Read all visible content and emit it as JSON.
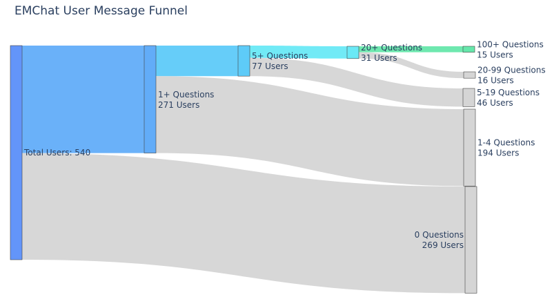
{
  "chart_data": {
    "type": "sankey",
    "title": "EMChat User Message Funnel",
    "nodes": [
      {
        "id": "total",
        "label": "Total Users: 540",
        "value": 540,
        "color": "#5b8ff9"
      },
      {
        "id": "q1",
        "label": "1+ Questions",
        "users_label": "271 Users",
        "value": 271,
        "color": "#5aa8f8"
      },
      {
        "id": "q5",
        "label": "5+ Questions",
        "users_label": "77 Users",
        "value": 77,
        "color": "#55c8f8"
      },
      {
        "id": "q20",
        "label": "20+ Questions",
        "users_label": "31 Users",
        "value": 31,
        "color": "#62e8f5"
      },
      {
        "id": "q100",
        "label": "100+ Questions",
        "users_label": "15 Users",
        "value": 15,
        "color": "#5ee6a6"
      },
      {
        "id": "q20_99",
        "label": "20-99 Questions",
        "users_label": "16 Users",
        "value": 16,
        "color": "#d3d3d3"
      },
      {
        "id": "q5_19",
        "label": "5-19 Questions",
        "users_label": "46 Users",
        "value": 46,
        "color": "#d3d3d3"
      },
      {
        "id": "q1_4",
        "label": "1-4 Questions",
        "users_label": "194 Users",
        "value": 194,
        "color": "#d3d3d3"
      },
      {
        "id": "q0",
        "label": "0 Questions",
        "users_label": "269 Users",
        "value": 269,
        "color": "#d3d3d3"
      }
    ],
    "links": [
      {
        "source": "total",
        "target": "q1",
        "value": 271,
        "color": "#5aa8f8"
      },
      {
        "source": "total",
        "target": "q0",
        "value": 269,
        "color": "#d3d3d3"
      },
      {
        "source": "q1",
        "target": "q5",
        "value": 77,
        "color": "#55c8f8"
      },
      {
        "source": "q1",
        "target": "q1_4",
        "value": 194,
        "color": "#d3d3d3"
      },
      {
        "source": "q5",
        "target": "q20",
        "value": 31,
        "color": "#62e8f5"
      },
      {
        "source": "q5",
        "target": "q5_19",
        "value": 46,
        "color": "#d3d3d3"
      },
      {
        "source": "q20",
        "target": "q100",
        "value": 15,
        "color": "#5ee6a6"
      },
      {
        "source": "q20",
        "target": "q20_99",
        "value": 16,
        "color": "#d3d3d3"
      }
    ]
  }
}
